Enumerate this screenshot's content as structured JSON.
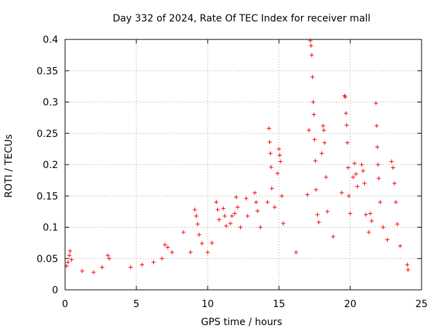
{
  "chart_data": {
    "type": "scatter",
    "title": "Day 332 of 2024, Rate Of TEC Index for receiver mall",
    "xlabel": "GPS time / hours",
    "ylabel": "ROTI / TECUs",
    "xlim": [
      0,
      25
    ],
    "ylim": [
      0,
      0.4
    ],
    "x_ticks": [
      0,
      5,
      10,
      15,
      20,
      25
    ],
    "y_ticks": [
      0,
      0.05,
      0.1,
      0.15,
      0.2,
      0.25,
      0.3,
      0.35,
      0.4
    ],
    "x_tick_labels": [
      "0",
      "5",
      "10",
      "15",
      "20",
      "25"
    ],
    "y_tick_labels": [
      "0",
      "0.05",
      "0.1",
      "0.15",
      "0.2",
      "0.25",
      "0.3",
      "0.35",
      "0.4"
    ],
    "grid": true,
    "marker": "+",
    "color": "#ff0000",
    "series": [
      {
        "points": [
          [
            0.1,
            0.038
          ],
          [
            0.2,
            0.044
          ],
          [
            0.3,
            0.055
          ],
          [
            0.35,
            0.062
          ],
          [
            0.45,
            0.048
          ],
          [
            1.2,
            0.03
          ],
          [
            2.0,
            0.028
          ],
          [
            2.6,
            0.036
          ],
          [
            3.0,
            0.055
          ],
          [
            3.1,
            0.05
          ],
          [
            4.6,
            0.036
          ],
          [
            5.4,
            0.04
          ],
          [
            6.2,
            0.044
          ],
          [
            6.8,
            0.05
          ],
          [
            7.0,
            0.072
          ],
          [
            7.2,
            0.068
          ],
          [
            7.5,
            0.06
          ],
          [
            8.3,
            0.092
          ],
          [
            8.8,
            0.06
          ],
          [
            9.1,
            0.128
          ],
          [
            9.2,
            0.118
          ],
          [
            9.3,
            0.105
          ],
          [
            9.4,
            0.088
          ],
          [
            9.6,
            0.074
          ],
          [
            10.0,
            0.06
          ],
          [
            10.3,
            0.075
          ],
          [
            10.6,
            0.14
          ],
          [
            10.7,
            0.128
          ],
          [
            10.8,
            0.112
          ],
          [
            11.1,
            0.13
          ],
          [
            11.2,
            0.118
          ],
          [
            11.3,
            0.102
          ],
          [
            11.6,
            0.106
          ],
          [
            11.7,
            0.118
          ],
          [
            11.9,
            0.122
          ],
          [
            12.0,
            0.148
          ],
          [
            12.1,
            0.132
          ],
          [
            12.3,
            0.1
          ],
          [
            12.7,
            0.146
          ],
          [
            12.8,
            0.118
          ],
          [
            13.3,
            0.155
          ],
          [
            13.4,
            0.14
          ],
          [
            13.5,
            0.126
          ],
          [
            13.7,
            0.1
          ],
          [
            14.2,
            0.14
          ],
          [
            14.3,
            0.258
          ],
          [
            14.35,
            0.236
          ],
          [
            14.4,
            0.218
          ],
          [
            14.45,
            0.196
          ],
          [
            14.5,
            0.162
          ],
          [
            14.7,
            0.132
          ],
          [
            14.9,
            0.186
          ],
          [
            15.0,
            0.225
          ],
          [
            15.05,
            0.215
          ],
          [
            15.1,
            0.205
          ],
          [
            15.2,
            0.15
          ],
          [
            15.3,
            0.106
          ],
          [
            16.2,
            0.06
          ],
          [
            17.0,
            0.152
          ],
          [
            17.1,
            0.255
          ],
          [
            17.2,
            0.398
          ],
          [
            17.25,
            0.39
          ],
          [
            17.3,
            0.375
          ],
          [
            17.35,
            0.34
          ],
          [
            17.4,
            0.3
          ],
          [
            17.45,
            0.28
          ],
          [
            17.5,
            0.24
          ],
          [
            17.55,
            0.206
          ],
          [
            17.6,
            0.16
          ],
          [
            17.7,
            0.12
          ],
          [
            17.8,
            0.108
          ],
          [
            18.0,
            0.218
          ],
          [
            18.1,
            0.262
          ],
          [
            18.15,
            0.255
          ],
          [
            18.2,
            0.235
          ],
          [
            18.3,
            0.18
          ],
          [
            18.4,
            0.125
          ],
          [
            18.8,
            0.085
          ],
          [
            19.4,
            0.155
          ],
          [
            19.6,
            0.31
          ],
          [
            19.65,
            0.308
          ],
          [
            19.7,
            0.282
          ],
          [
            19.75,
            0.263
          ],
          [
            19.8,
            0.235
          ],
          [
            19.85,
            0.195
          ],
          [
            19.9,
            0.15
          ],
          [
            20.0,
            0.122
          ],
          [
            20.2,
            0.18
          ],
          [
            20.3,
            0.202
          ],
          [
            20.4,
            0.185
          ],
          [
            20.5,
            0.165
          ],
          [
            20.8,
            0.2
          ],
          [
            20.9,
            0.19
          ],
          [
            21.0,
            0.17
          ],
          [
            21.1,
            0.12
          ],
          [
            21.3,
            0.092
          ],
          [
            21.4,
            0.122
          ],
          [
            21.5,
            0.11
          ],
          [
            21.8,
            0.298
          ],
          [
            21.85,
            0.262
          ],
          [
            21.9,
            0.228
          ],
          [
            21.95,
            0.2
          ],
          [
            22.0,
            0.178
          ],
          [
            22.1,
            0.14
          ],
          [
            22.3,
            0.1
          ],
          [
            22.6,
            0.08
          ],
          [
            22.9,
            0.205
          ],
          [
            23.0,
            0.195
          ],
          [
            23.1,
            0.17
          ],
          [
            23.2,
            0.14
          ],
          [
            23.3,
            0.105
          ],
          [
            23.5,
            0.07
          ],
          [
            24.0,
            0.04
          ],
          [
            24.05,
            0.032
          ]
        ]
      }
    ]
  }
}
